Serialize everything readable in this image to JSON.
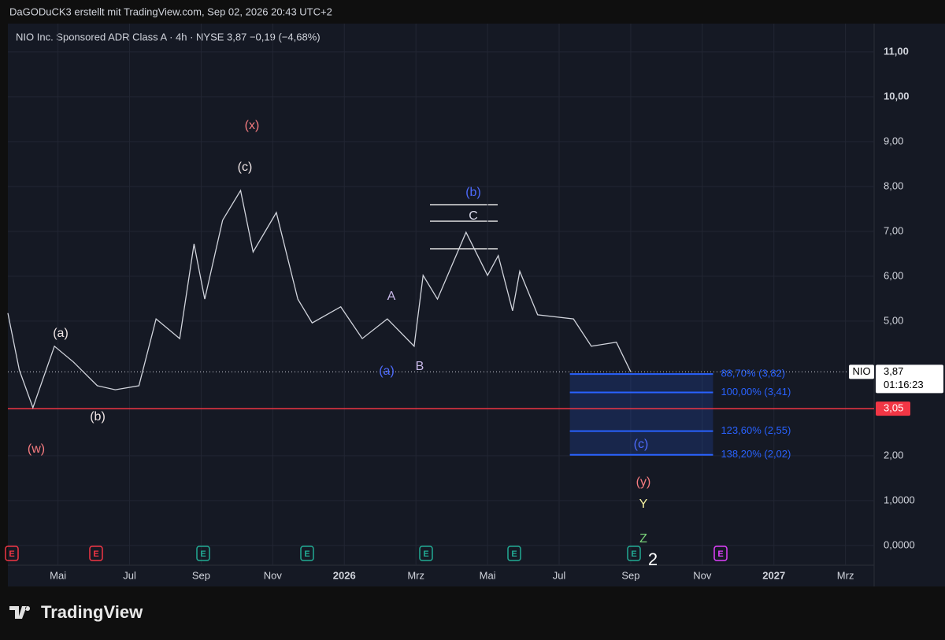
{
  "header": "DaGODuCK3 erstellt mit TradingView.com, Sep 02, 2026 20:43 UTC+2",
  "footer": "TradingView",
  "chart_data": {
    "type": "line",
    "title": "NIO Inc. Sponsored ADR Class A · 4h · NYSE  3,87  −0,19 (−4,68%)",
    "series": [
      {
        "name": "NIO",
        "color": "#d1d4dc",
        "x": [
          2.6,
          2.92,
          3.3,
          3.9,
          4.43,
          5.1,
          5.6,
          6.26,
          6.74,
          7.4,
          7.8,
          8.1,
          8.6,
          9.1,
          9.45,
          10.1,
          10.7,
          11.1,
          11.9,
          12.5,
          13.2,
          13.95,
          14.2,
          14.6,
          15.4,
          16.0,
          16.3,
          16.7,
          16.9,
          17.4,
          18.4,
          18.9,
          19.6,
          20.0
        ],
        "values": [
          5.18,
          3.91,
          3.07,
          4.44,
          4.09,
          3.56,
          3.47,
          3.56,
          5.05,
          4.61,
          6.72,
          5.49,
          7.25,
          7.91,
          6.54,
          7.42,
          5.49,
          4.96,
          5.32,
          4.61,
          5.05,
          4.44,
          6.02,
          5.49,
          6.98,
          6.02,
          6.46,
          5.23,
          6.11,
          5.14,
          5.05,
          4.44,
          4.53,
          3.87
        ]
      }
    ],
    "xlim": [
      2.6,
      26.8
    ],
    "xticks": [
      {
        "value": 4,
        "label": "Mai"
      },
      {
        "value": 6,
        "label": "Jul"
      },
      {
        "value": 8,
        "label": "Sep"
      },
      {
        "value": 10,
        "label": "Nov"
      },
      {
        "value": 12,
        "label": "2026"
      },
      {
        "value": 14,
        "label": "Mrz"
      },
      {
        "value": 16,
        "label": "Mai"
      },
      {
        "value": 18,
        "label": "Jul"
      },
      {
        "value": 20,
        "label": "Sep"
      },
      {
        "value": 22,
        "label": "Nov"
      },
      {
        "value": 24,
        "label": "2027"
      },
      {
        "value": 26,
        "label": "Mrz"
      }
    ],
    "ylim": [
      -0.44,
      11.63
    ],
    "yticks": [
      {
        "value": 11,
        "label": "11,00"
      },
      {
        "value": 10,
        "label": "10,00"
      },
      {
        "value": 9,
        "label": "9,00"
      },
      {
        "value": 8,
        "label": "8,00"
      },
      {
        "value": 7,
        "label": "7,00"
      },
      {
        "value": 6,
        "label": "6,00"
      },
      {
        "value": 5,
        "label": "5,00"
      },
      {
        "value": 2,
        "label": "2,00"
      },
      {
        "value": 1,
        "label": "1,0000"
      },
      {
        "value": 0,
        "label": "0,0000"
      }
    ],
    "grid": true,
    "price_line": {
      "name": "NIO",
      "value": 3.87,
      "value_label": "3,87",
      "countdown": "01:16:23"
    },
    "support": {
      "value": 3.05,
      "label": "3,05",
      "color": "#f23645"
    },
    "fib_range_x": [
      18.3,
      22.3
    ],
    "fib_levels": [
      {
        "value": 3.82,
        "label": "88,70% (3,82)"
      },
      {
        "value": 3.41,
        "label": "100,00% (3,41)"
      },
      {
        "value": 2.55,
        "label": "123,60% (2,55)"
      },
      {
        "value": 2.02,
        "label": "138,20% (2,02)"
      }
    ],
    "fib_color": "#2962ff",
    "annotations": [
      {
        "text": "(x)",
        "color": "#f77c80"
      },
      {
        "text": "(c)",
        "color": "#f0e6e6"
      },
      {
        "text": "(a)",
        "color": "#f0e6e6"
      },
      {
        "text": "(b)",
        "color": "#f0e6e6"
      },
      {
        "text": "(w)",
        "color": "#f77c80"
      },
      {
        "text": "(b)",
        "color": "#4d6bfe"
      },
      {
        "text": "C",
        "color": "#d8d8e8"
      },
      {
        "text": "A",
        "color": "#c8b8e8"
      },
      {
        "text": "B",
        "color": "#c8b8e8"
      },
      {
        "text": "(a)",
        "color": "#4d6bfe"
      },
      {
        "text": "(c)",
        "color": "#4d6bfe"
      },
      {
        "text": "(y)",
        "color": "#f77c80"
      },
      {
        "text": "Y",
        "color": "#f5f0a0"
      },
      {
        "text": "Z",
        "color": "#7bd37b"
      },
      {
        "text": "2",
        "color": "#ffffff"
      }
    ],
    "earnings_label": "E"
  }
}
